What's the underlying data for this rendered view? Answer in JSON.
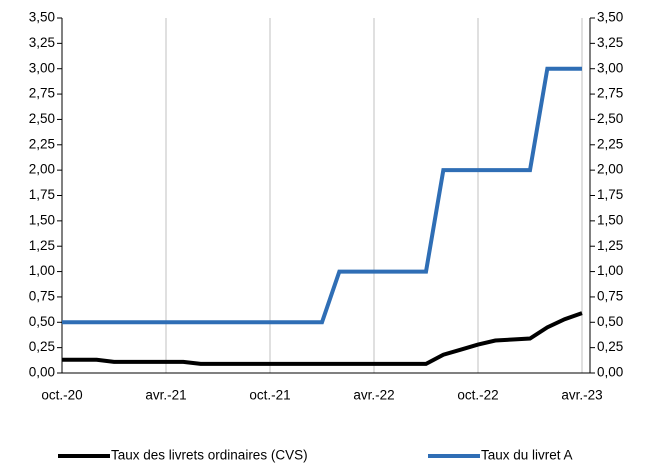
{
  "chart_data": {
    "type": "line",
    "categories": [
      "oct.-20",
      null,
      null,
      null,
      null,
      null,
      "avr.-21",
      null,
      null,
      null,
      null,
      null,
      "oct.-21",
      null,
      null,
      null,
      null,
      null,
      "avr.-22",
      null,
      null,
      null,
      null,
      null,
      "oct.-22",
      null,
      null,
      null,
      null,
      null,
      "avr.-23"
    ],
    "series": [
      {
        "name": "Taux des livrets ordinaires (CVS)",
        "color": "#000000",
        "values": [
          0.13,
          0.13,
          0.13,
          0.11,
          0.11,
          0.11,
          0.11,
          0.11,
          0.09,
          0.09,
          0.09,
          0.09,
          0.09,
          0.09,
          0.09,
          0.09,
          0.09,
          0.09,
          0.09,
          0.09,
          0.09,
          0.09,
          0.18,
          0.23,
          0.28,
          0.32,
          0.33,
          0.34,
          0.45,
          0.53,
          0.59
        ]
      },
      {
        "name": "Taux du livret A",
        "color": "#2f6eb5",
        "values": [
          0.5,
          0.5,
          0.5,
          0.5,
          0.5,
          0.5,
          0.5,
          0.5,
          0.5,
          0.5,
          0.5,
          0.5,
          0.5,
          0.5,
          0.5,
          0.5,
          1.0,
          1.0,
          1.0,
          1.0,
          1.0,
          1.0,
          2.0,
          2.0,
          2.0,
          2.0,
          2.0,
          2.0,
          3.0,
          3.0,
          3.0
        ]
      }
    ],
    "ylim": [
      0,
      3.5
    ],
    "yticks": [
      {
        "value": 0,
        "label": "0,00"
      },
      {
        "value": 0.25,
        "label": "0,25"
      },
      {
        "value": 0.5,
        "label": "0,50"
      },
      {
        "value": 0.75,
        "label": "0,75"
      },
      {
        "value": 1,
        "label": "1,00"
      },
      {
        "value": 1.25,
        "label": "1,25"
      },
      {
        "value": 1.5,
        "label": "1,50"
      },
      {
        "value": 1.75,
        "label": "1,75"
      },
      {
        "value": 2,
        "label": "2,00"
      },
      {
        "value": 2.25,
        "label": "2,25"
      },
      {
        "value": 2.5,
        "label": "2,50"
      },
      {
        "value": 2.75,
        "label": "2,75"
      },
      {
        "value": 3,
        "label": "3,00"
      },
      {
        "value": 3.25,
        "label": "3,25"
      },
      {
        "value": 3.5,
        "label": "3,50"
      }
    ],
    "y2lim": [
      0,
      3.5
    ],
    "y2ticks": [
      {
        "value": 0,
        "label": "0,00"
      },
      {
        "value": 0.25,
        "label": "0,25"
      },
      {
        "value": 0.5,
        "label": "0,50"
      },
      {
        "value": 0.75,
        "label": "0,75"
      },
      {
        "value": 1,
        "label": "1,00"
      },
      {
        "value": 1.25,
        "label": "1,25"
      },
      {
        "value": 1.5,
        "label": "1,50"
      },
      {
        "value": 1.75,
        "label": "1,75"
      },
      {
        "value": 2,
        "label": "2,00"
      },
      {
        "value": 2.25,
        "label": "2,25"
      },
      {
        "value": 2.5,
        "label": "2,50"
      },
      {
        "value": 2.75,
        "label": "2,75"
      },
      {
        "value": 3,
        "label": "3,00"
      },
      {
        "value": 3.25,
        "label": "3,25"
      },
      {
        "value": 3.5,
        "label": "3,50"
      }
    ],
    "grid": true,
    "legend": "bottom"
  }
}
